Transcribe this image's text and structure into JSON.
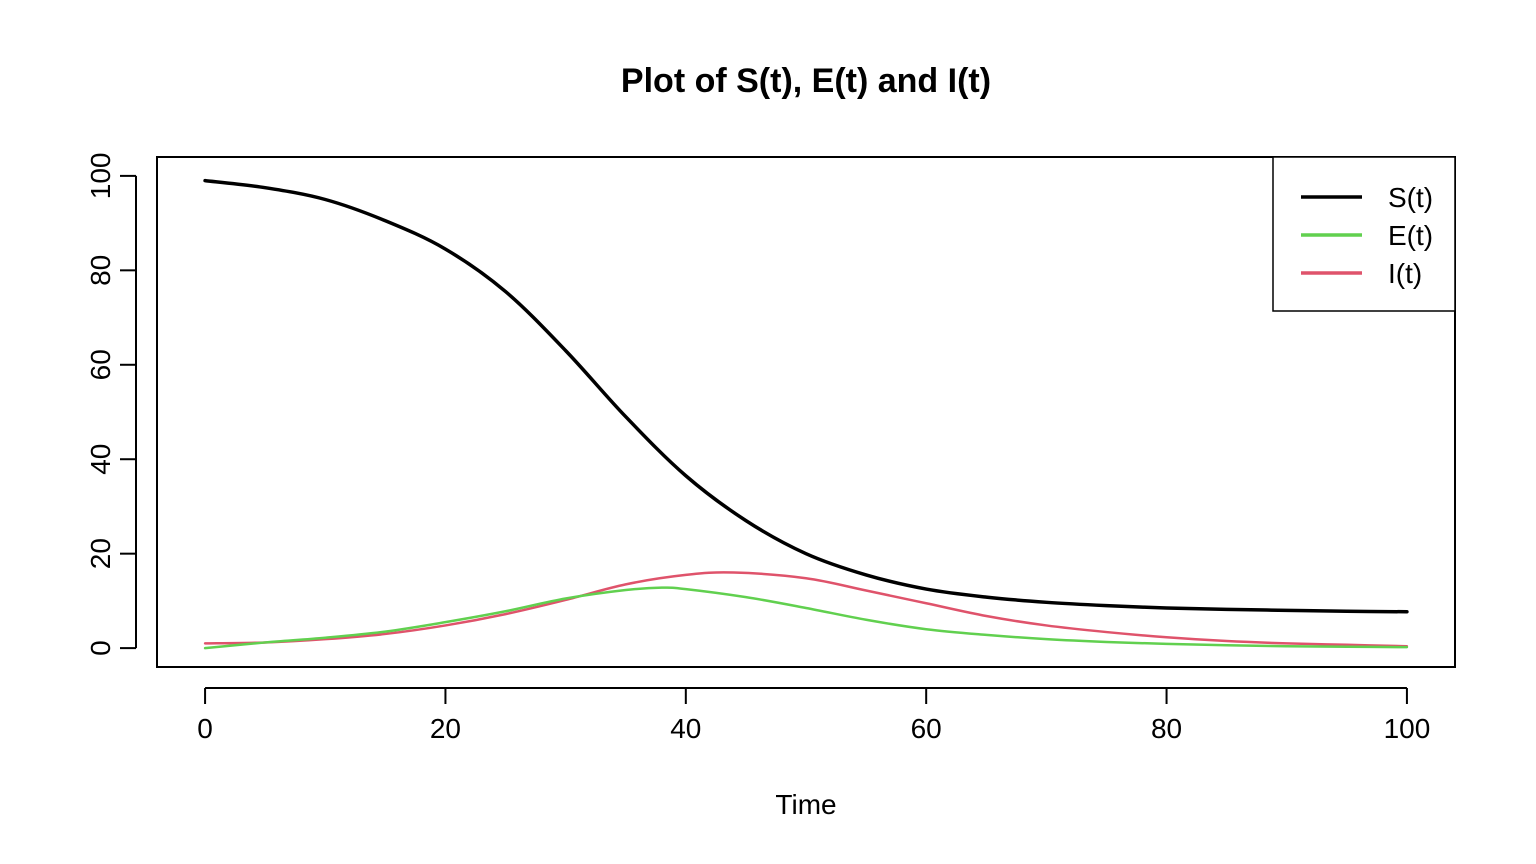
{
  "chart_data": {
    "type": "line",
    "title": "Plot of S(t), E(t) and I(t)",
    "xlabel": "Time",
    "ylabel": "",
    "xlim": [
      -4,
      104
    ],
    "ylim": [
      -4,
      104
    ],
    "xticks": [
      0,
      20,
      40,
      60,
      80,
      100
    ],
    "yticks": [
      0,
      20,
      40,
      60,
      80,
      100
    ],
    "grid": false,
    "legend_position": "top-right",
    "series": [
      {
        "name": "S(t)",
        "color": "#000000",
        "x": [
          0,
          5,
          10,
          15,
          20,
          25,
          30,
          35,
          40,
          45,
          50,
          55,
          60,
          65,
          70,
          75,
          80,
          85,
          90,
          95,
          100
        ],
        "y": [
          99,
          97.5,
          95,
          90.5,
          84.5,
          75.5,
          63,
          49,
          36.5,
          27,
          20,
          15.5,
          12.5,
          10.8,
          9.7,
          9,
          8.5,
          8.2,
          8,
          7.8,
          7.7
        ]
      },
      {
        "name": "E(t)",
        "color": "#61d04f",
        "x": [
          0,
          5,
          10,
          15,
          20,
          25,
          30,
          35,
          38,
          40,
          45,
          50,
          55,
          60,
          65,
          70,
          75,
          80,
          85,
          90,
          95,
          100
        ],
        "y": [
          0,
          1.2,
          2.2,
          3.5,
          5.5,
          7.8,
          10.5,
          12.3,
          12.8,
          12.5,
          10.8,
          8.5,
          6,
          4,
          2.8,
          1.9,
          1.3,
          0.9,
          0.6,
          0.4,
          0.3,
          0.2
        ]
      },
      {
        "name": "I(t)",
        "color": "#df536b",
        "x": [
          0,
          5,
          10,
          15,
          20,
          25,
          30,
          35,
          40,
          44,
          50,
          55,
          60,
          65,
          70,
          75,
          80,
          85,
          90,
          95,
          100
        ],
        "y": [
          1,
          1.2,
          1.9,
          3,
          4.8,
          7.2,
          10.2,
          13.5,
          15.5,
          16,
          14.8,
          12.2,
          9.5,
          6.8,
          4.8,
          3.4,
          2.3,
          1.5,
          1,
          0.7,
          0.4
        ]
      }
    ]
  }
}
